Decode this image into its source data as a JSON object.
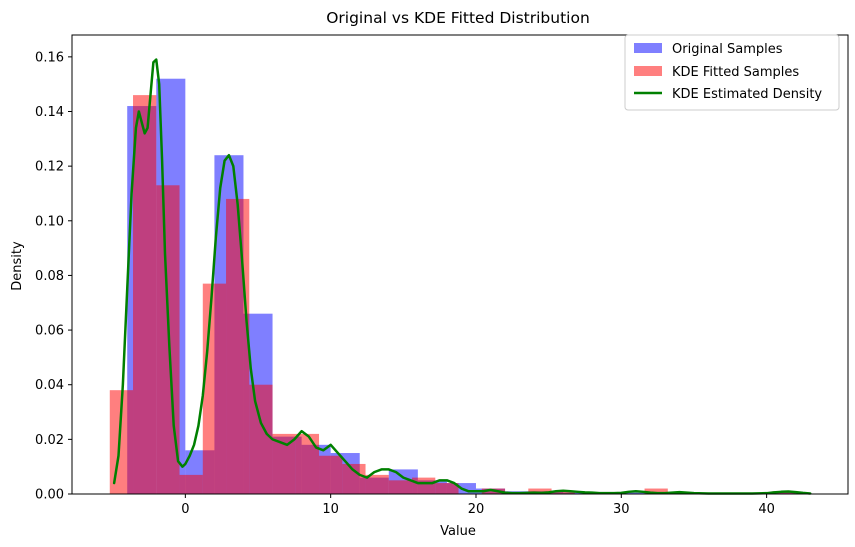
{
  "chart_data": {
    "type": "bar",
    "title": "Original vs KDE Fitted Distribution",
    "xlabel": "Value",
    "ylabel": "Density",
    "xlim": [
      -7.8,
      45.6
    ],
    "ylim": [
      0,
      0.168
    ],
    "xticks": [
      0,
      10,
      20,
      30,
      40
    ],
    "yticks": [
      0.0,
      0.02,
      0.04,
      0.06,
      0.08,
      0.1,
      0.12,
      0.14,
      0.16
    ],
    "ytick_labels": [
      "0.00",
      "0.02",
      "0.04",
      "0.06",
      "0.08",
      "0.10",
      "0.12",
      "0.14",
      "0.16"
    ],
    "legend_position": "top-right",
    "grid": false,
    "series": [
      {
        "name": "Original Samples",
        "kind": "histogram",
        "color": "#0000ff",
        "opacity": 0.5,
        "bins": [
          {
            "x0": -4.0,
            "x1": -2.0,
            "density": 0.142
          },
          {
            "x0": -2.0,
            "x1": 0.0,
            "density": 0.152
          },
          {
            "x0": 0.0,
            "x1": 2.0,
            "density": 0.016
          },
          {
            "x0": 2.0,
            "x1": 4.0,
            "density": 0.124
          },
          {
            "x0": 4.0,
            "x1": 6.0,
            "density": 0.066
          },
          {
            "x0": 6.0,
            "x1": 8.0,
            "density": 0.021
          },
          {
            "x0": 8.0,
            "x1": 10.0,
            "density": 0.018
          },
          {
            "x0": 10.0,
            "x1": 12.0,
            "density": 0.015
          },
          {
            "x0": 12.0,
            "x1": 14.0,
            "density": 0.006
          },
          {
            "x0": 14.0,
            "x1": 16.0,
            "density": 0.009
          },
          {
            "x0": 16.0,
            "x1": 18.0,
            "density": 0.005
          },
          {
            "x0": 18.0,
            "x1": 20.0,
            "density": 0.004
          },
          {
            "x0": 20.0,
            "x1": 22.0,
            "density": 0.002
          },
          {
            "x0": 22.0,
            "x1": 24.0,
            "density": 0.001
          },
          {
            "x0": 24.0,
            "x1": 26.0,
            "density": 0.001
          },
          {
            "x0": 26.0,
            "x1": 28.0,
            "density": 0.0005
          },
          {
            "x0": 28.0,
            "x1": 30.0,
            "density": 0.0005
          },
          {
            "x0": 30.0,
            "x1": 32.0,
            "density": 0.0005
          },
          {
            "x0": 32.0,
            "x1": 34.0,
            "density": 0.0005
          },
          {
            "x0": 40.0,
            "x1": 42.0,
            "density": 0.0005
          }
        ]
      },
      {
        "name": "KDE Fitted Samples",
        "kind": "histogram",
        "color": "#ff0000",
        "opacity": 0.5,
        "bins": [
          {
            "x0": -5.2,
            "x1": -3.6,
            "density": 0.038
          },
          {
            "x0": -3.6,
            "x1": -2.0,
            "density": 0.146
          },
          {
            "x0": -2.0,
            "x1": -0.4,
            "density": 0.113
          },
          {
            "x0": -0.4,
            "x1": 1.2,
            "density": 0.007
          },
          {
            "x0": 1.2,
            "x1": 2.8,
            "density": 0.077
          },
          {
            "x0": 2.8,
            "x1": 4.4,
            "density": 0.108
          },
          {
            "x0": 4.4,
            "x1": 6.0,
            "density": 0.04
          },
          {
            "x0": 6.0,
            "x1": 7.6,
            "density": 0.022
          },
          {
            "x0": 7.6,
            "x1": 9.2,
            "density": 0.022
          },
          {
            "x0": 9.2,
            "x1": 10.8,
            "density": 0.014
          },
          {
            "x0": 10.8,
            "x1": 12.4,
            "density": 0.011
          },
          {
            "x0": 12.4,
            "x1": 14.0,
            "density": 0.007
          },
          {
            "x0": 14.0,
            "x1": 15.6,
            "density": 0.005
          },
          {
            "x0": 15.6,
            "x1": 17.2,
            "density": 0.006
          },
          {
            "x0": 17.2,
            "x1": 18.8,
            "density": 0.004
          },
          {
            "x0": 20.4,
            "x1": 22.0,
            "density": 0.002
          },
          {
            "x0": 23.6,
            "x1": 25.2,
            "density": 0.002
          },
          {
            "x0": 25.2,
            "x1": 26.8,
            "density": 0.001
          },
          {
            "x0": 31.6,
            "x1": 33.2,
            "density": 0.002
          },
          {
            "x0": 40.4,
            "x1": 42.0,
            "density": 0.001
          }
        ]
      },
      {
        "name": "KDE Estimated Density",
        "kind": "line",
        "color": "#008000",
        "x": [
          -4.9,
          -4.6,
          -4.3,
          -4.0,
          -3.7,
          -3.4,
          -3.2,
          -3.0,
          -2.8,
          -2.6,
          -2.4,
          -2.2,
          -2.0,
          -1.8,
          -1.6,
          -1.4,
          -1.1,
          -0.8,
          -0.5,
          -0.2,
          0.0,
          0.3,
          0.6,
          0.9,
          1.2,
          1.5,
          1.8,
          2.1,
          2.4,
          2.7,
          3.0,
          3.3,
          3.6,
          3.9,
          4.2,
          4.5,
          4.8,
          5.2,
          5.6,
          6.0,
          6.5,
          7.0,
          7.5,
          8.0,
          8.5,
          9.0,
          9.5,
          10.0,
          10.5,
          11.0,
          11.5,
          12.0,
          12.5,
          13.0,
          13.5,
          14.0,
          14.5,
          15.0,
          15.5,
          16.0,
          16.5,
          17.0,
          17.5,
          18.0,
          18.5,
          19.0,
          19.5,
          20.0,
          20.5,
          21.0,
          21.5,
          22.0,
          22.5,
          23.0,
          23.5,
          24.0,
          24.5,
          25.0,
          25.5,
          26.0,
          26.5,
          27.0,
          27.5,
          28.0,
          28.5,
          29.0,
          29.5,
          30.0,
          30.5,
          31.0,
          31.5,
          32.0,
          32.5,
          33.0,
          33.5,
          34.0,
          34.5,
          35.0,
          36.0,
          37.0,
          38.0,
          39.0,
          40.0,
          40.5,
          41.0,
          41.5,
          42.0,
          42.5,
          43.0
        ],
        "y": [
          0.004,
          0.014,
          0.04,
          0.075,
          0.11,
          0.134,
          0.14,
          0.136,
          0.132,
          0.134,
          0.146,
          0.158,
          0.159,
          0.15,
          0.122,
          0.088,
          0.054,
          0.025,
          0.012,
          0.01,
          0.011,
          0.014,
          0.018,
          0.025,
          0.036,
          0.052,
          0.072,
          0.094,
          0.112,
          0.122,
          0.124,
          0.12,
          0.106,
          0.086,
          0.064,
          0.046,
          0.034,
          0.026,
          0.022,
          0.02,
          0.019,
          0.018,
          0.02,
          0.023,
          0.021,
          0.017,
          0.016,
          0.018,
          0.015,
          0.012,
          0.009,
          0.007,
          0.006,
          0.008,
          0.009,
          0.009,
          0.008,
          0.006,
          0.005,
          0.004,
          0.004,
          0.004,
          0.005,
          0.005,
          0.004,
          0.002,
          0.001,
          0.001,
          0.001,
          0.0015,
          0.001,
          0.0005,
          0.0003,
          0.0003,
          0.0004,
          0.0005,
          0.0004,
          0.0006,
          0.001,
          0.0012,
          0.001,
          0.0008,
          0.0006,
          0.0005,
          0.0003,
          0.0003,
          0.0003,
          0.0004,
          0.0008,
          0.001,
          0.0008,
          0.0005,
          0.0003,
          0.0003,
          0.0005,
          0.0007,
          0.0005,
          0.0003,
          0.0002,
          0.0002,
          0.0002,
          0.0002,
          0.0003,
          0.0006,
          0.0008,
          0.0009,
          0.0007,
          0.0004,
          0.0002
        ]
      }
    ]
  }
}
